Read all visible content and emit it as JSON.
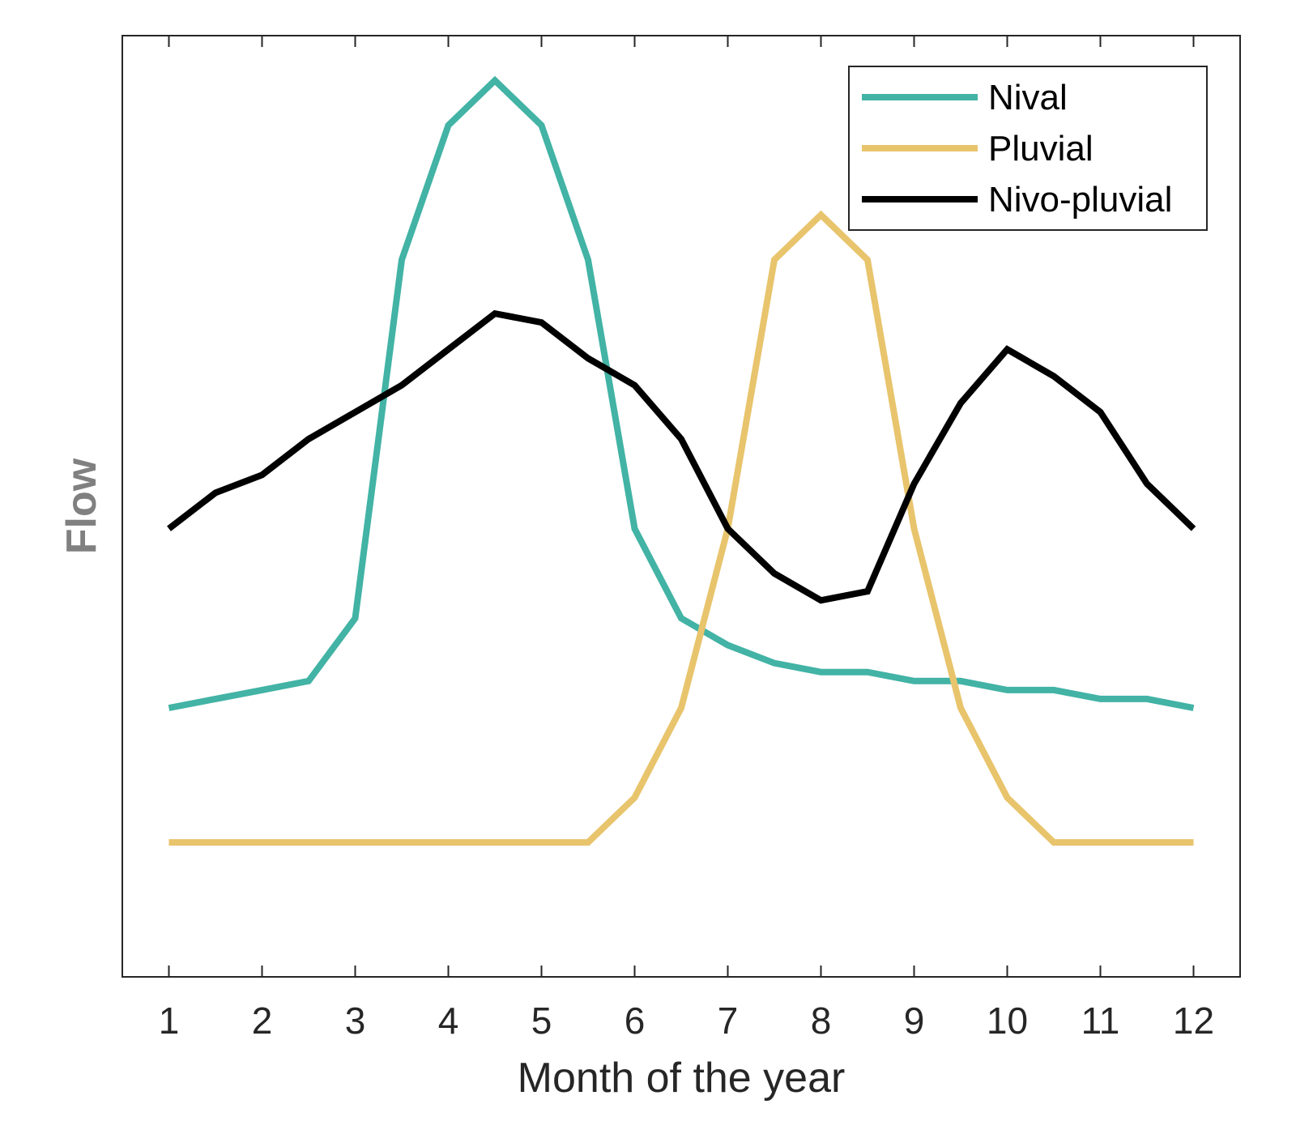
{
  "chart_data": {
    "type": "line",
    "title": "",
    "xlabel": "Month of the year",
    "ylabel": "Flow",
    "x": [
      1,
      1.5,
      2,
      2.5,
      3,
      3.5,
      4,
      4.5,
      5,
      5.5,
      6,
      6.5,
      7,
      7.5,
      8,
      8.5,
      9,
      9.5,
      10,
      10.5,
      11,
      11.5,
      12
    ],
    "xticks": [
      1,
      2,
      3,
      4,
      5,
      6,
      7,
      8,
      9,
      10,
      11,
      12
    ],
    "xtick_labels": [
      "1",
      "2",
      "3",
      "4",
      "5",
      "6",
      "7",
      "8",
      "9",
      "10",
      "11",
      "12"
    ],
    "xlim": [
      0.5,
      12.5
    ],
    "ylim": [
      0,
      105
    ],
    "yticks_visible": false,
    "grid": false,
    "legend_position": "top-right",
    "series": [
      {
        "name": "Nival",
        "color": "#42B3A5",
        "values": [
          30,
          31,
          32,
          33,
          40,
          80,
          95,
          100,
          95,
          80,
          50,
          40,
          37,
          35,
          34,
          34,
          33,
          33,
          32,
          32,
          31,
          31,
          30
        ]
      },
      {
        "name": "Pluvial",
        "color": "#E8C46C",
        "values": [
          15,
          15,
          15,
          15,
          15,
          15,
          15,
          15,
          15,
          15,
          20,
          30,
          50,
          80,
          85,
          80,
          50,
          30,
          20,
          15,
          15,
          15,
          15
        ]
      },
      {
        "name": "Nivo-pluvial",
        "color": "#000000",
        "values": [
          50,
          54,
          56,
          60,
          63,
          66,
          70,
          74,
          73,
          69,
          66,
          60,
          50,
          45,
          42,
          43,
          55,
          64,
          70,
          67,
          63,
          55,
          50
        ]
      }
    ]
  }
}
